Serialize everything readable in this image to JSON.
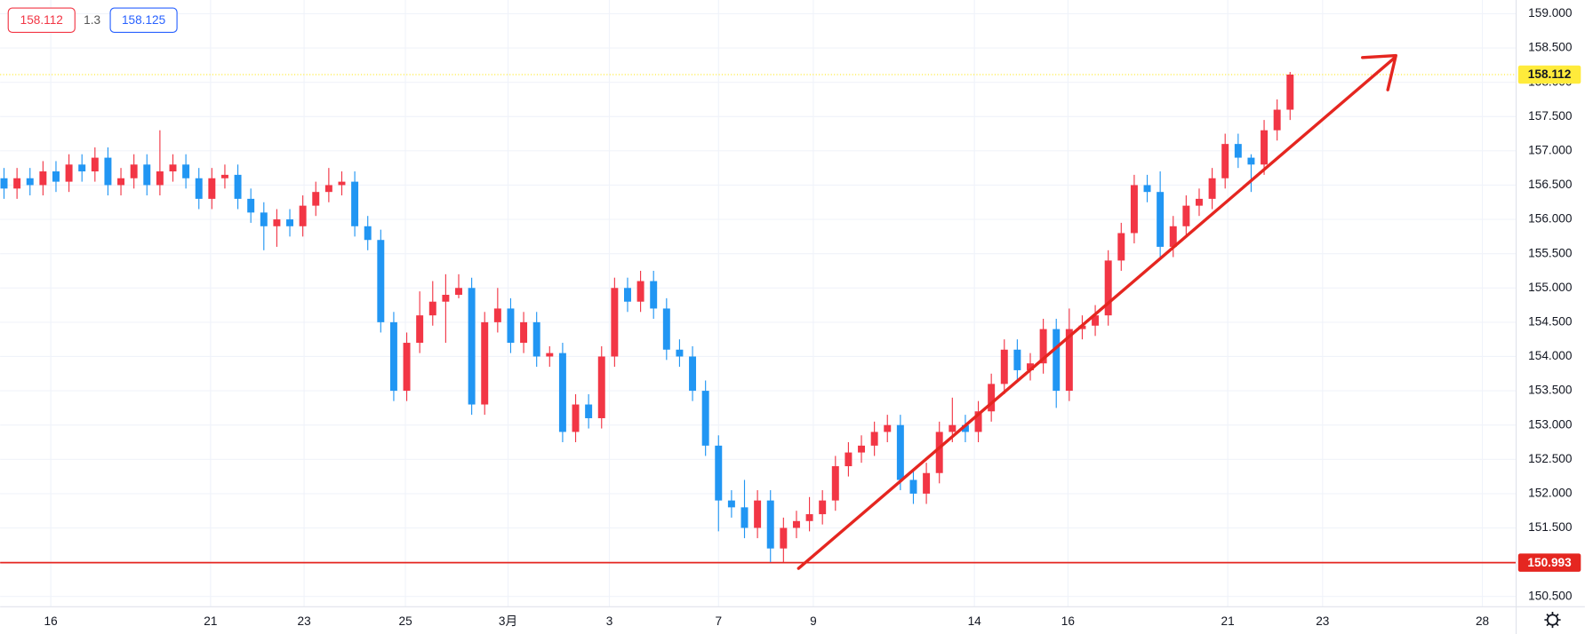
{
  "chart_data": {
    "type": "candlestick",
    "header": {
      "bid": "158.112",
      "spread": "1.3",
      "ask": "158.125"
    },
    "up_color": "#f23645",
    "down_color": "#2196f3",
    "grid": true,
    "ylim": [
      150.35,
      159.2
    ],
    "yticks": [
      {
        "value": 150.5,
        "label": "150.500"
      },
      {
        "value": 151,
        "label": "151.000"
      },
      {
        "value": 151.5,
        "label": "151.500"
      },
      {
        "value": 152,
        "label": "152.000"
      },
      {
        "value": 152.5,
        "label": "152.500"
      },
      {
        "value": 153,
        "label": "153.000"
      },
      {
        "value": 153.5,
        "label": "153.500"
      },
      {
        "value": 154,
        "label": "154.000"
      },
      {
        "value": 154.5,
        "label": "154.500"
      },
      {
        "value": 155,
        "label": "155.000"
      },
      {
        "value": 155.5,
        "label": "155.500"
      },
      {
        "value": 156,
        "label": "156.000"
      },
      {
        "value": 156.5,
        "label": "156.500"
      },
      {
        "value": 157,
        "label": "157.000"
      },
      {
        "value": 157.5,
        "label": "157.500"
      },
      {
        "value": 158,
        "label": "158.000"
      },
      {
        "value": 158.5,
        "label": "158.500"
      },
      {
        "value": 159,
        "label": "159.000"
      }
    ],
    "xlim": [
      -0.3,
      116.4
    ],
    "xticks": [
      {
        "value": 3.6,
        "label": "16"
      },
      {
        "value": 15.9,
        "label": "21"
      },
      {
        "value": 23.1,
        "label": "23"
      },
      {
        "value": 30.9,
        "label": "25"
      },
      {
        "value": 38.8,
        "label": "3月"
      },
      {
        "value": 46.6,
        "label": "3"
      },
      {
        "value": 55.0,
        "label": "7"
      },
      {
        "value": 62.3,
        "label": "9"
      },
      {
        "value": 74.7,
        "label": "14"
      },
      {
        "value": 81.9,
        "label": "16"
      },
      {
        "value": 94.2,
        "label": "21"
      },
      {
        "value": 101.5,
        "label": "23"
      },
      {
        "value": 113.8,
        "label": "28"
      }
    ],
    "price_lines": [
      {
        "value": 158.112,
        "label": "158.112",
        "color": "#ffeb3b",
        "text_color": "#131722",
        "dashed": true
      },
      {
        "value": 150.993,
        "label": "150.993",
        "color": "#e52620",
        "text_color": "#ffffff",
        "dashed": false
      }
    ],
    "candles": [
      [
        156.6,
        156.75,
        156.3,
        156.45
      ],
      [
        156.45,
        156.75,
        156.3,
        156.6
      ],
      [
        156.6,
        156.75,
        156.35,
        156.5
      ],
      [
        156.5,
        156.85,
        156.35,
        156.7
      ],
      [
        156.7,
        156.85,
        156.4,
        156.55
      ],
      [
        156.55,
        156.95,
        156.4,
        156.8
      ],
      [
        156.8,
        156.95,
        156.55,
        156.7
      ],
      [
        156.7,
        157.05,
        156.55,
        156.9
      ],
      [
        156.9,
        157.05,
        156.35,
        156.5
      ],
      [
        156.5,
        156.75,
        156.35,
        156.6
      ],
      [
        156.6,
        156.95,
        156.45,
        156.8
      ],
      [
        156.8,
        156.95,
        156.35,
        156.5
      ],
      [
        156.5,
        157.3,
        156.35,
        156.7
      ],
      [
        156.7,
        156.95,
        156.55,
        156.8
      ],
      [
        156.8,
        156.95,
        156.45,
        156.6
      ],
      [
        156.6,
        156.75,
        156.15,
        156.3
      ],
      [
        156.3,
        156.75,
        156.15,
        156.6
      ],
      [
        156.6,
        156.8,
        156.45,
        156.65
      ],
      [
        156.65,
        156.8,
        156.15,
        156.3
      ],
      [
        156.3,
        156.45,
        155.95,
        156.1
      ],
      [
        156.1,
        156.25,
        155.55,
        155.9
      ],
      [
        155.9,
        156.15,
        155.6,
        156.0
      ],
      [
        156.0,
        156.15,
        155.75,
        155.9
      ],
      [
        155.9,
        156.35,
        155.75,
        156.2
      ],
      [
        156.2,
        156.55,
        156.05,
        156.4
      ],
      [
        156.4,
        156.75,
        156.25,
        156.5
      ],
      [
        156.5,
        156.7,
        156.35,
        156.55
      ],
      [
        156.55,
        156.7,
        155.75,
        155.9
      ],
      [
        155.9,
        156.05,
        155.55,
        155.7
      ],
      [
        155.7,
        155.85,
        154.35,
        154.5
      ],
      [
        154.5,
        154.65,
        153.35,
        153.5
      ],
      [
        153.5,
        154.35,
        153.35,
        154.2
      ],
      [
        154.2,
        154.95,
        154.05,
        154.6
      ],
      [
        154.6,
        155.1,
        154.45,
        154.8
      ],
      [
        154.8,
        155.2,
        154.2,
        154.9
      ],
      [
        154.9,
        155.2,
        154.85,
        155.0
      ],
      [
        155.0,
        155.15,
        153.15,
        153.3
      ],
      [
        153.3,
        154.65,
        153.15,
        154.5
      ],
      [
        154.5,
        155.0,
        154.35,
        154.7
      ],
      [
        154.7,
        154.85,
        154.05,
        154.2
      ],
      [
        154.2,
        154.65,
        154.05,
        154.5
      ],
      [
        154.5,
        154.65,
        153.85,
        154.0
      ],
      [
        154.0,
        154.15,
        153.85,
        154.05
      ],
      [
        154.05,
        154.2,
        152.75,
        152.9
      ],
      [
        152.9,
        153.45,
        152.75,
        153.3
      ],
      [
        153.3,
        153.45,
        152.95,
        153.1
      ],
      [
        153.1,
        154.15,
        152.95,
        154.0
      ],
      [
        154.0,
        155.15,
        153.85,
        155.0
      ],
      [
        155.0,
        155.15,
        154.65,
        154.8
      ],
      [
        154.8,
        155.25,
        154.65,
        155.1
      ],
      [
        155.1,
        155.25,
        154.55,
        154.7
      ],
      [
        154.7,
        154.85,
        153.95,
        154.1
      ],
      [
        154.1,
        154.25,
        153.85,
        154.0
      ],
      [
        154.0,
        154.15,
        153.35,
        153.5
      ],
      [
        153.5,
        153.65,
        152.55,
        152.7
      ],
      [
        152.7,
        152.85,
        151.45,
        151.9
      ],
      [
        151.9,
        152.05,
        151.65,
        151.8
      ],
      [
        151.8,
        152.2,
        151.35,
        151.5
      ],
      [
        151.5,
        152.05,
        151.35,
        151.9
      ],
      [
        151.9,
        152.05,
        151.0,
        151.2
      ],
      [
        151.2,
        151.65,
        151.0,
        151.5
      ],
      [
        151.5,
        151.75,
        151.35,
        151.6
      ],
      [
        151.6,
        151.95,
        151.45,
        151.7
      ],
      [
        151.7,
        152.05,
        151.55,
        151.9
      ],
      [
        151.9,
        152.55,
        151.75,
        152.4
      ],
      [
        152.4,
        152.75,
        152.25,
        152.6
      ],
      [
        152.6,
        152.85,
        152.45,
        152.7
      ],
      [
        152.7,
        153.05,
        152.55,
        152.9
      ],
      [
        152.9,
        153.15,
        152.75,
        153.0
      ],
      [
        153.0,
        153.15,
        152.05,
        152.2
      ],
      [
        152.2,
        152.35,
        151.85,
        152.0
      ],
      [
        152.0,
        152.45,
        151.85,
        152.3
      ],
      [
        152.3,
        153.05,
        152.15,
        152.9
      ],
      [
        152.9,
        153.4,
        152.75,
        153.0
      ],
      [
        153.0,
        153.15,
        152.75,
        152.9
      ],
      [
        152.9,
        153.35,
        152.75,
        153.2
      ],
      [
        153.2,
        153.75,
        153.05,
        153.6
      ],
      [
        153.6,
        154.25,
        153.45,
        154.1
      ],
      [
        154.1,
        154.25,
        153.65,
        153.8
      ],
      [
        153.8,
        154.05,
        153.65,
        153.9
      ],
      [
        153.9,
        154.55,
        153.75,
        154.4
      ],
      [
        154.4,
        154.55,
        153.25,
        153.5
      ],
      [
        153.5,
        154.7,
        153.35,
        154.4
      ],
      [
        154.4,
        154.6,
        154.25,
        154.45
      ],
      [
        154.45,
        154.75,
        154.3,
        154.6
      ],
      [
        154.6,
        155.55,
        154.45,
        155.4
      ],
      [
        155.4,
        155.95,
        155.25,
        155.8
      ],
      [
        155.8,
        156.65,
        155.65,
        156.5
      ],
      [
        156.5,
        156.65,
        156.25,
        156.4
      ],
      [
        156.4,
        156.7,
        155.45,
        155.6
      ],
      [
        155.6,
        156.05,
        155.45,
        155.9
      ],
      [
        155.9,
        156.35,
        155.75,
        156.2
      ],
      [
        156.2,
        156.45,
        156.05,
        156.3
      ],
      [
        156.3,
        156.75,
        156.15,
        156.6
      ],
      [
        156.6,
        157.25,
        156.45,
        157.1
      ],
      [
        157.1,
        157.25,
        156.75,
        156.9
      ],
      [
        156.9,
        156.95,
        156.4,
        156.8
      ],
      [
        156.8,
        157.45,
        156.65,
        157.3
      ],
      [
        157.3,
        157.75,
        157.15,
        157.6
      ],
      [
        157.6,
        158.15,
        157.45,
        158.112
      ]
    ]
  }
}
